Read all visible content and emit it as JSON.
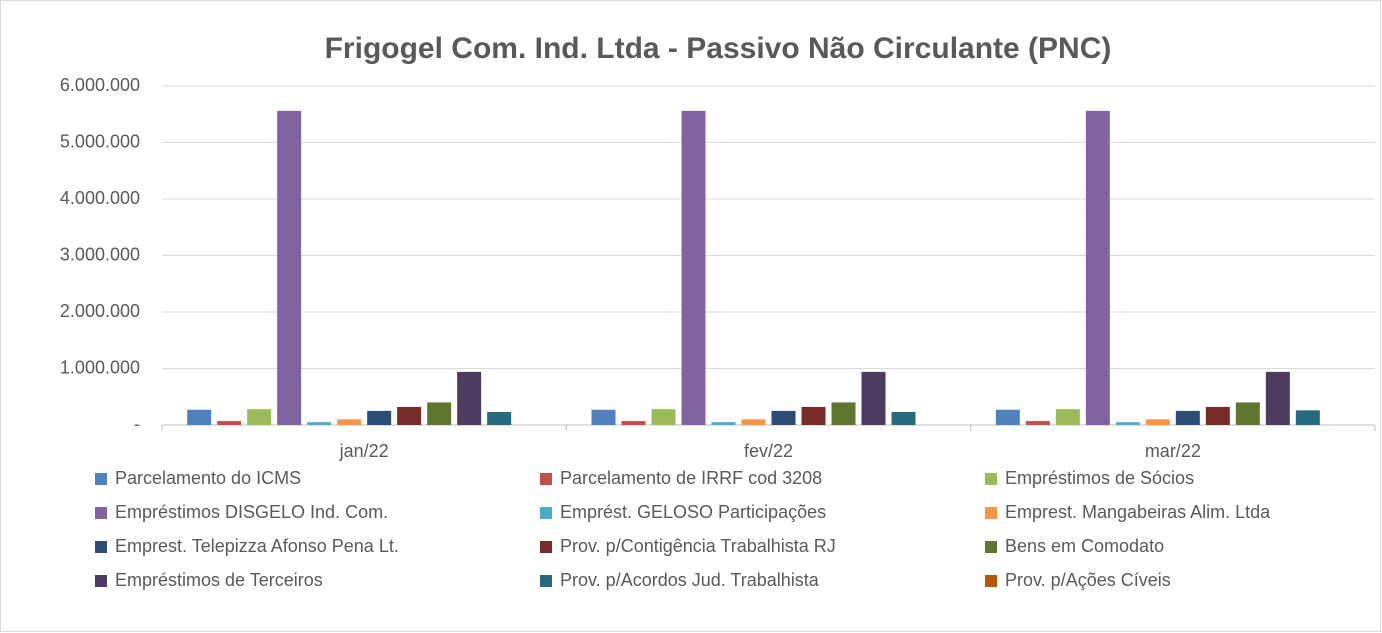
{
  "chart_data": {
    "type": "bar",
    "title": "Frigogel Com. Ind. Ltda - Passivo Não Circulante (PNC)",
    "categories": [
      "jan/22",
      "fev/22",
      "mar/22"
    ],
    "ylim": [
      0,
      6000000
    ],
    "yticks": [
      {
        "value": 0,
        "label": "-"
      },
      {
        "value": 1000000,
        "label": "1.000.000"
      },
      {
        "value": 2000000,
        "label": "2.000.000"
      },
      {
        "value": 3000000,
        "label": "3.000.000"
      },
      {
        "value": 4000000,
        "label": "4.000.000"
      },
      {
        "value": 5000000,
        "label": "5.000.000"
      },
      {
        "value": 6000000,
        "label": "6.000.000"
      }
    ],
    "grid": true,
    "legend": "bottom",
    "series": [
      {
        "name": "Parcelamento do ICMS",
        "color": "#4f81bd",
        "values": [
          270000,
          270000,
          270000
        ]
      },
      {
        "name": "Parcelamento de IRRF cod 3208",
        "color": "#c0504d",
        "values": [
          70000,
          70000,
          70000
        ]
      },
      {
        "name": "Empréstimos de Sócios",
        "color": "#9bbb59",
        "values": [
          280000,
          280000,
          280000
        ]
      },
      {
        "name": "Empréstimos DISGELO Ind. Com.",
        "color": "#8064a2",
        "values": [
          5560000,
          5560000,
          5560000
        ]
      },
      {
        "name": "Emprést. GELOSO Participações",
        "color": "#4bacc6",
        "values": [
          50000,
          50000,
          50000
        ]
      },
      {
        "name": "Emprest. Mangabeiras Alim. Ltda",
        "color": "#f79646",
        "values": [
          100000,
          100000,
          100000
        ]
      },
      {
        "name": "Emprest. Telepizza Afonso Pena Lt.",
        "color": "#2c4d75",
        "values": [
          250000,
          250000,
          250000
        ]
      },
      {
        "name": "Prov. p/Contigência Trabalhista RJ",
        "color": "#772c2a",
        "values": [
          320000,
          320000,
          320000
        ]
      },
      {
        "name": "Bens em Comodato",
        "color": "#5f7530",
        "values": [
          400000,
          400000,
          400000
        ]
      },
      {
        "name": "Empréstimos de Terceiros",
        "color": "#4d3b62",
        "values": [
          940000,
          940000,
          940000
        ]
      },
      {
        "name": "Prov. p/Acordos Jud. Trabalhista",
        "color": "#276a7c",
        "values": [
          230000,
          230000,
          260000
        ]
      },
      {
        "name": "Prov. p/Ações Cíveis",
        "color": "#b65708",
        "values": [
          0,
          0,
          0
        ]
      }
    ]
  }
}
